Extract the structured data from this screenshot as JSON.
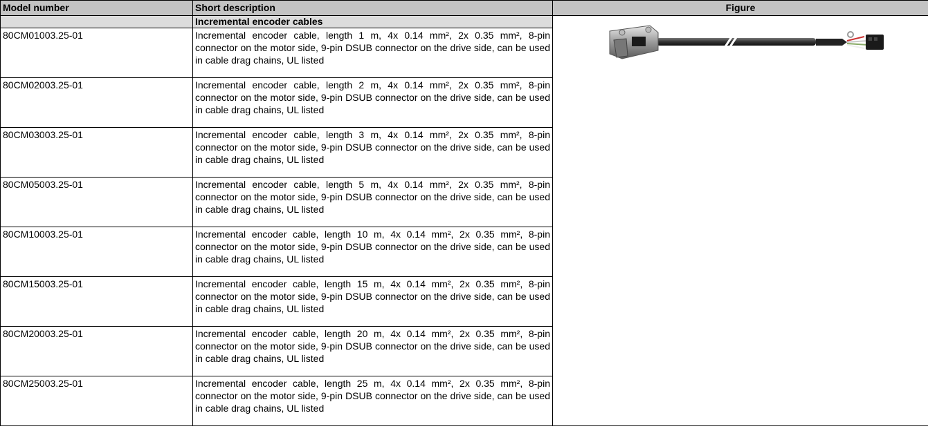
{
  "table": {
    "headers": [
      "Model number",
      "Short description",
      "Figure"
    ],
    "section": "Incremental encoder cables",
    "rows": [
      [
        "80CM01003.25-01",
        "Incremental encoder cable, length 1 m, 4x 0.14 mm², 2x 0.35 mm², 8-pin connector on the motor side, 9-pin DSUB connector on the drive side, can be used in cable drag chains, UL listed"
      ],
      [
        "80CM02003.25-01",
        "Incremental encoder cable, length 2 m, 4x 0.14 mm², 2x 0.35 mm², 8-pin connector on the motor side, 9-pin DSUB connector on the drive side, can be used in cable drag chains, UL listed"
      ],
      [
        "80CM03003.25-01",
        "Incremental encoder cable, length 3 m, 4x 0.14 mm², 2x 0.35 mm², 8-pin connector on the motor side, 9-pin DSUB connector on the drive side, can be used in cable drag chains, UL listed"
      ],
      [
        "80CM05003.25-01",
        "Incremental encoder cable, length 5 m, 4x 0.14 mm², 2x 0.35 mm², 8-pin connector on the motor side, 9-pin DSUB connector on the drive side, can be used in cable drag chains, UL listed"
      ],
      [
        "80CM10003.25-01",
        "Incremental encoder cable, length 10 m, 4x 0.14 mm², 2x 0.35 mm², 8-pin connector on the motor side, 9-pin DSUB connector on the drive side, can be used in cable drag chains, UL listed"
      ],
      [
        "80CM15003.25-01",
        "Incremental encoder cable, length 15 m, 4x 0.14 mm², 2x 0.35 mm², 8-pin connector on the motor side, 9-pin DSUB connector on the drive side, can be used in cable drag chains, UL listed"
      ],
      [
        "80CM20003.25-01",
        "Incremental encoder cable, length 20 m, 4x 0.14 mm², 2x 0.35 mm², 8-pin connector on the motor side, 9-pin DSUB connector on the drive side, can be used in cable drag chains, UL listed"
      ],
      [
        "80CM25003.25-01",
        "Incremental encoder cable, length 25 m, 4x 0.14 mm², 2x 0.35 mm², 8-pin connector on the motor side, 9-pin DSUB connector on the drive side, can be used in cable drag chains, UL listed"
      ]
    ]
  }
}
